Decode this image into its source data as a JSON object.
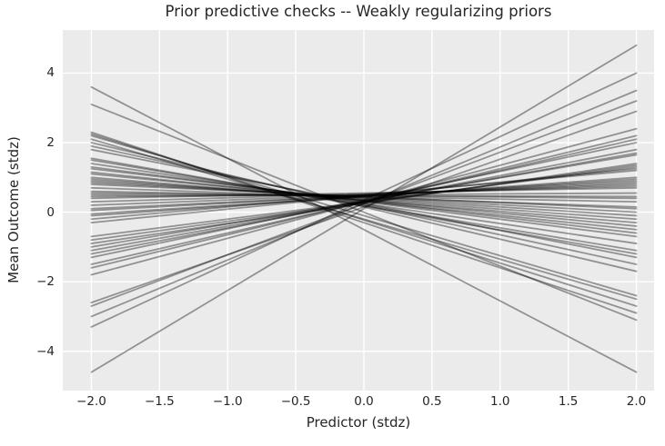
{
  "chart_data": {
    "type": "line",
    "title": "Prior predictive checks -- Weakly regularizing priors",
    "xlabel": "Predictor (stdz)",
    "ylabel": "Mean Outcome (stdz)",
    "x_ticks": [
      -2.0,
      -1.5,
      -1.0,
      -0.5,
      0.0,
      0.5,
      1.0,
      1.5,
      2.0
    ],
    "x_tick_labels": [
      "−2.0",
      "−1.5",
      "−1.0",
      "−0.5",
      "0.0",
      "0.5",
      "1.0",
      "1.5",
      "2.0"
    ],
    "y_ticks": [
      4,
      2,
      0,
      -2,
      -4
    ],
    "y_tick_labels": [
      "4",
      "2",
      "0",
      "−2",
      "−4"
    ],
    "xlim": [
      -2.21,
      2.13
    ],
    "ylim": [
      -5.13,
      5.24
    ],
    "grid": true,
    "legend": false,
    "description": "Approximately 50 straight prior-predictive regression lines drawn from x = -2 to x = 2; each entry in lines is [y at x=-2, y at x=+2].",
    "line_x": [
      -2,
      2
    ],
    "lines": [
      [
        -4.6,
        4.8
      ],
      [
        3.6,
        -4.6
      ],
      [
        3.1,
        -3.1
      ],
      [
        -3.3,
        4.0
      ],
      [
        -3.0,
        3.5
      ],
      [
        -2.7,
        3.2
      ],
      [
        -2.6,
        2.9
      ],
      [
        2.3,
        -2.9
      ],
      [
        2.25,
        -2.7
      ],
      [
        2.2,
        -2.4
      ],
      [
        2.1,
        -2.5
      ],
      [
        2.0,
        -1.7
      ],
      [
        1.9,
        -1.5
      ],
      [
        -1.8,
        2.4
      ],
      [
        1.8,
        -1.3
      ],
      [
        -1.6,
        2.2
      ],
      [
        1.55,
        -1.2
      ],
      [
        -1.5,
        2.1
      ],
      [
        1.5,
        -1.1
      ],
      [
        1.4,
        -0.9
      ],
      [
        -1.3,
        2.0
      ],
      [
        1.3,
        -0.7
      ],
      [
        -1.2,
        1.8
      ],
      [
        1.25,
        -0.6
      ],
      [
        -1.1,
        1.7
      ],
      [
        1.15,
        -0.5
      ],
      [
        -1.0,
        1.65
      ],
      [
        1.1,
        -0.4
      ],
      [
        -0.9,
        1.4
      ],
      [
        1.0,
        -0.3
      ],
      [
        -0.8,
        1.35
      ],
      [
        0.95,
        -0.2
      ],
      [
        -0.7,
        1.3
      ],
      [
        0.9,
        -0.1
      ],
      [
        0.85,
        0.0
      ],
      [
        -0.3,
        1.25
      ],
      [
        0.8,
        0.1
      ],
      [
        -0.2,
        1.2
      ],
      [
        0.7,
        0.15
      ],
      [
        -0.1,
        1.0
      ],
      [
        0.6,
        0.3
      ],
      [
        -0.05,
        0.95
      ],
      [
        0.55,
        0.4
      ],
      [
        0.05,
        0.9
      ],
      [
        0.5,
        0.45
      ],
      [
        0.1,
        0.85
      ],
      [
        0.45,
        0.55
      ],
      [
        0.2,
        0.8
      ],
      [
        0.4,
        0.7
      ],
      [
        0.3,
        0.75
      ]
    ],
    "style": {
      "figure_bg": "#ffffff",
      "plot_bg": "#ebebeb",
      "grid_color": "#ffffff",
      "line_color": "rgba(0,0,0,0.38)",
      "text_color": "#262626"
    }
  }
}
